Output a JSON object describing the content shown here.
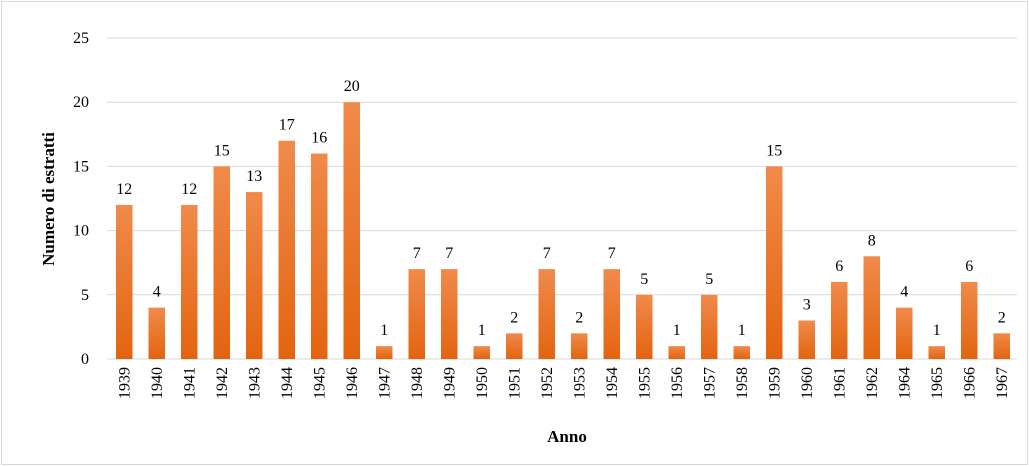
{
  "chart_data": {
    "type": "bar",
    "categories": [
      "1939",
      "1940",
      "1941",
      "1942",
      "1943",
      "1944",
      "1945",
      "1946",
      "1947",
      "1948",
      "1949",
      "1950",
      "1951",
      "1952",
      "1953",
      "1954",
      "1955",
      "1956",
      "1957",
      "1958",
      "1959",
      "1960",
      "1961",
      "1962",
      "1964",
      "1965",
      "1966",
      "1967"
    ],
    "values": [
      12,
      4,
      12,
      15,
      13,
      17,
      16,
      20,
      1,
      7,
      7,
      1,
      2,
      7,
      2,
      7,
      5,
      1,
      5,
      1,
      15,
      3,
      6,
      8,
      4,
      1,
      6,
      2
    ],
    "xlabel": "Anno",
    "ylabel": "Numero di estratti",
    "ylim": [
      0,
      25
    ],
    "yticks": [
      0,
      5,
      10,
      15,
      20,
      25
    ],
    "grid": true,
    "data_labels": true,
    "bar_color_top": "#f08a4b",
    "bar_color_bottom": "#e3640f",
    "grid_color": "#d9d9d9"
  }
}
